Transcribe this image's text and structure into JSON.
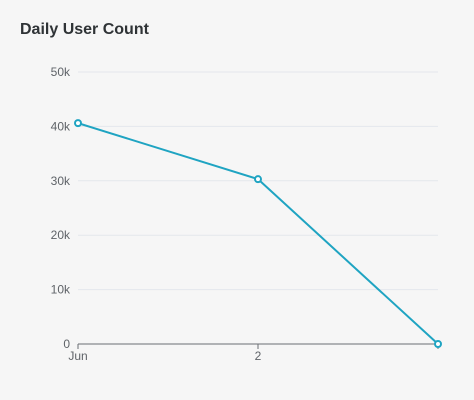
{
  "chart_data": {
    "type": "line",
    "title": "Daily User Count",
    "xlabel": "",
    "ylabel": "",
    "x_tick_labels": [
      "Jun",
      "2",
      ""
    ],
    "y_tick_labels": [
      "0",
      "10k",
      "20k",
      "30k",
      "40k",
      "50k"
    ],
    "y_ticks": [
      0,
      10000,
      20000,
      30000,
      40000,
      50000
    ],
    "ylim": [
      0,
      50000
    ],
    "grid": true,
    "legend": "none",
    "series": [
      {
        "x": [
          "Jun 1",
          "Jun 2",
          "Jun 3"
        ],
        "values": [
          40600,
          30300,
          0
        ],
        "color": "#1fa4c2"
      }
    ]
  },
  "colors": {
    "line": "#1fa4c2",
    "grid": "#e4e7ec",
    "axis": "#6b6f74",
    "background": "#f6f6f6"
  }
}
